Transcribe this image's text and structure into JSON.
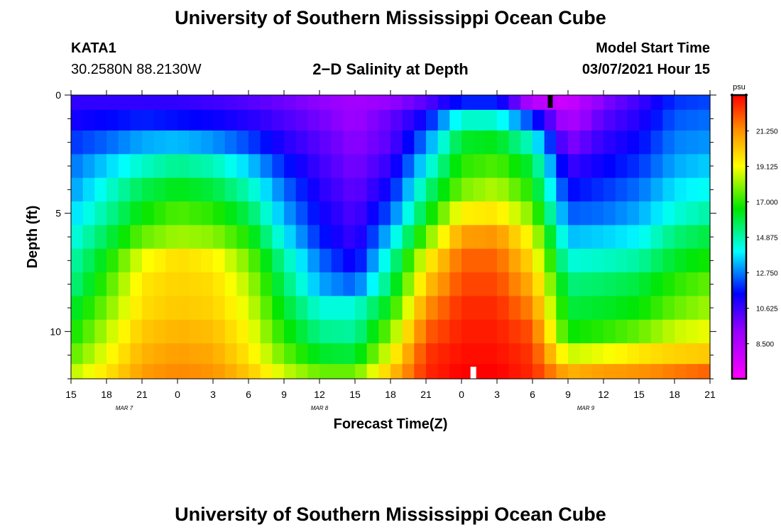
{
  "page": {
    "title_top": "University of Southern Mississippi Ocean Cube",
    "title_bottom": "University of Southern Mississippi Ocean Cube",
    "station": "KATA1",
    "location": "30.2580N 88.2130W",
    "subtitle": "2−D Salinity at Depth",
    "model_start_label": "Model Start Time",
    "model_start_value": "03/07/2021 Hour 15"
  },
  "chart_data": {
    "type": "heatmap",
    "title": "2−D Salinity at Depth",
    "xlabel": "Forecast Time(Z)",
    "ylabel": "Depth (ft)",
    "x_unit": "forecast hours from model start (0 = 03/07/2021 15Z)",
    "xlim": [
      0,
      54
    ],
    "ylim": [
      0,
      12
    ],
    "x_ticks": [
      {
        "h": 0,
        "label": "15"
      },
      {
        "h": 3,
        "label": "18"
      },
      {
        "h": 6,
        "label": "21"
      },
      {
        "h": 9,
        "label": "0"
      },
      {
        "h": 12,
        "label": "3"
      },
      {
        "h": 15,
        "label": "6"
      },
      {
        "h": 18,
        "label": "9"
      },
      {
        "h": 21,
        "label": "12"
      },
      {
        "h": 24,
        "label": "15"
      },
      {
        "h": 27,
        "label": "18"
      },
      {
        "h": 30,
        "label": "21"
      },
      {
        "h": 33,
        "label": "0"
      },
      {
        "h": 36,
        "label": "3"
      },
      {
        "h": 39,
        "label": "6"
      },
      {
        "h": 42,
        "label": "9"
      },
      {
        "h": 45,
        "label": "12"
      },
      {
        "h": 48,
        "label": "15"
      },
      {
        "h": 51,
        "label": "18"
      },
      {
        "h": 54,
        "label": "21"
      }
    ],
    "date_labels": [
      {
        "h": 4.5,
        "label": "MAR 7"
      },
      {
        "h": 21,
        "label": "MAR 8"
      },
      {
        "h": 43.5,
        "label": "MAR 9"
      }
    ],
    "y_ticks": [
      {
        "v": 0,
        "label": "0"
      },
      {
        "v": 5,
        "label": "5"
      },
      {
        "v": 10,
        "label": "10"
      }
    ],
    "colorbar": {
      "unit": "psu",
      "range": [
        6.4,
        23.4
      ],
      "ticks": [
        8.5,
        10.625,
        12.75,
        14.875,
        17.0,
        19.125,
        21.25
      ],
      "tick_labels": [
        "8.500",
        "10.625",
        "12.750",
        "14.875",
        "17.000",
        "19.125",
        "21.250"
      ]
    },
    "depth_levels_ft": [
      0.25,
      1,
      2,
      3,
      4,
      5,
      6,
      7,
      8,
      9,
      10,
      11,
      11.75
    ],
    "keyframes_hours": [
      0,
      3,
      6,
      9,
      12,
      15,
      18,
      21,
      24,
      27,
      30,
      33,
      36,
      39,
      42,
      45,
      48,
      51,
      54
    ],
    "salinity_psu": [
      [
        10.8,
        10.8,
        10.8,
        10.8,
        10.6,
        10.3,
        9.9,
        9.4,
        8.9,
        9.3,
        10.2,
        11.8,
        11.8,
        8.4,
        7.8,
        9.6,
        10.6,
        12.0,
        12.2
      ],
      [
        11.2,
        11.5,
        11.8,
        11.6,
        11.4,
        11.0,
        10.4,
        9.8,
        9.1,
        10.0,
        11.5,
        14.6,
        14.5,
        12.0,
        8.5,
        10.2,
        11.0,
        12.4,
        12.6
      ],
      [
        12.0,
        12.5,
        13.2,
        13.4,
        13.0,
        12.2,
        11.0,
        10.2,
        9.4,
        10.2,
        12.8,
        16.2,
        16.4,
        14.5,
        9.5,
        10.8,
        11.5,
        12.8,
        13.0
      ],
      [
        12.6,
        13.6,
        14.6,
        15.2,
        14.8,
        13.6,
        11.8,
        10.6,
        9.7,
        10.8,
        14.0,
        17.0,
        17.4,
        16.0,
        10.6,
        11.4,
        12.0,
        13.2,
        13.6
      ],
      [
        13.0,
        14.4,
        15.8,
        16.4,
        16.0,
        14.8,
        12.6,
        11.0,
        10.0,
        11.5,
        15.2,
        17.8,
        18.4,
        16.8,
        11.5,
        12.0,
        12.6,
        13.8,
        14.2
      ],
      [
        13.6,
        15.0,
        16.6,
        17.4,
        17.0,
        15.8,
        13.2,
        11.4,
        10.3,
        12.4,
        16.2,
        19.4,
        19.6,
        17.8,
        12.4,
        12.6,
        13.2,
        14.4,
        15.0
      ],
      [
        14.2,
        15.8,
        17.6,
        18.2,
        18.0,
        16.8,
        14.0,
        11.8,
        10.6,
        13.6,
        17.6,
        21.0,
        21.2,
        19.0,
        13.4,
        13.6,
        14.0,
        15.4,
        16.0
      ],
      [
        14.8,
        16.6,
        19.0,
        19.8,
        19.4,
        17.8,
        15.0,
        12.6,
        11.2,
        14.8,
        19.2,
        22.0,
        22.0,
        19.8,
        14.4,
        14.6,
        15.0,
        16.2,
        16.8
      ],
      [
        15.2,
        17.2,
        19.6,
        20.0,
        19.8,
        18.4,
        15.6,
        13.2,
        12.4,
        15.6,
        20.2,
        22.4,
        22.4,
        20.6,
        15.4,
        15.6,
        16.0,
        17.0,
        17.6
      ],
      [
        16.0,
        17.8,
        19.8,
        20.2,
        20.0,
        18.8,
        16.2,
        14.4,
        14.4,
        16.6,
        21.2,
        22.8,
        22.8,
        21.4,
        16.0,
        16.2,
        16.6,
        17.6,
        18.2
      ],
      [
        16.6,
        18.4,
        20.2,
        20.6,
        20.4,
        19.2,
        16.8,
        15.2,
        15.0,
        17.8,
        22.0,
        23.0,
        23.0,
        22.2,
        16.6,
        17.0,
        17.6,
        18.6,
        19.0
      ],
      [
        17.4,
        19.0,
        20.6,
        21.0,
        20.8,
        19.6,
        17.6,
        16.2,
        16.0,
        19.0,
        22.6,
        23.2,
        23.2,
        22.6,
        18.6,
        19.0,
        19.6,
        20.0,
        20.2
      ],
      [
        18.4,
        19.6,
        21.0,
        21.4,
        21.2,
        20.2,
        18.6,
        17.6,
        17.6,
        20.2,
        22.8,
        23.4,
        23.4,
        22.8,
        20.6,
        21.0,
        21.2,
        21.6,
        22.0
      ]
    ],
    "markers": [
      {
        "type": "top-marker",
        "h": 40.5,
        "color": "#000000"
      },
      {
        "type": "bottom-marker",
        "h": 34.0,
        "color": "#ffffff"
      }
    ]
  }
}
